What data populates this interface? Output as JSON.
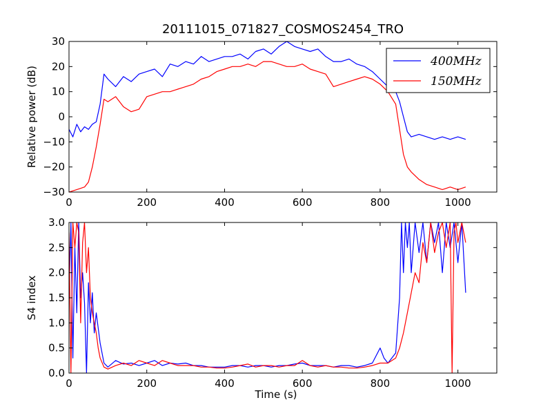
{
  "title": "20111015_071827_COSMOS2454_TRO",
  "chart_data": [
    {
      "type": "line",
      "xlabel": "",
      "ylabel": "Relative power (dB)",
      "xlim": [
        0,
        1100
      ],
      "ylim": [
        -30,
        30
      ],
      "xticks": [
        "0",
        "200",
        "400",
        "600",
        "800",
        "1000"
      ],
      "yticks": [
        "−30",
        "−20",
        "−10",
        "0",
        "10",
        "20",
        "30"
      ],
      "legend": "top-right",
      "series": [
        {
          "name": "400MHz",
          "color": "#0000ff",
          "x": [
            0,
            10,
            20,
            30,
            40,
            50,
            60,
            70,
            80,
            90,
            100,
            120,
            140,
            160,
            180,
            200,
            220,
            240,
            260,
            280,
            300,
            320,
            340,
            360,
            380,
            400,
            420,
            440,
            460,
            480,
            500,
            520,
            540,
            560,
            580,
            600,
            620,
            640,
            660,
            680,
            700,
            720,
            740,
            760,
            780,
            800,
            820,
            840,
            850,
            860,
            870,
            880,
            900,
            920,
            940,
            960,
            980,
            1000,
            1020
          ],
          "y": [
            -5,
            -8,
            -3,
            -6,
            -4,
            -5,
            -3,
            -2,
            5,
            17,
            15,
            12,
            16,
            14,
            17,
            18,
            19,
            16,
            21,
            20,
            22,
            21,
            24,
            22,
            23,
            24,
            24,
            25,
            23,
            26,
            27,
            25,
            28,
            30,
            28,
            27,
            26,
            27,
            24,
            22,
            22,
            23,
            21,
            20,
            18,
            15,
            12,
            10,
            6,
            0,
            -6,
            -8,
            -7,
            -8,
            -9,
            -8,
            -9,
            -8,
            -9
          ]
        },
        {
          "name": "150MHz",
          "color": "#ff0000",
          "x": [
            0,
            20,
            40,
            50,
            60,
            70,
            80,
            90,
            100,
            120,
            140,
            160,
            180,
            200,
            220,
            240,
            260,
            280,
            300,
            320,
            340,
            360,
            380,
            400,
            420,
            440,
            460,
            480,
            500,
            520,
            540,
            560,
            580,
            600,
            620,
            640,
            660,
            680,
            700,
            720,
            740,
            760,
            780,
            800,
            820,
            840,
            850,
            860,
            870,
            880,
            900,
            920,
            940,
            960,
            980,
            1000,
            1020
          ],
          "y": [
            -30,
            -29,
            -28,
            -26,
            -20,
            -12,
            -3,
            7,
            6,
            8,
            4,
            2,
            3,
            8,
            9,
            10,
            10,
            11,
            12,
            13,
            15,
            16,
            18,
            19,
            20,
            20,
            21,
            20,
            22,
            22,
            21,
            20,
            20,
            21,
            19,
            18,
            17,
            12,
            13,
            14,
            15,
            16,
            15,
            13,
            10,
            5,
            -5,
            -15,
            -20,
            -22,
            -25,
            -27,
            -28,
            -29,
            -28,
            -29,
            -28
          ]
        }
      ]
    },
    {
      "type": "line",
      "xlabel": "Time (s)",
      "ylabel": "S4 index",
      "xlim": [
        0,
        1100
      ],
      "ylim": [
        0,
        3
      ],
      "xticks": [
        "0",
        "200",
        "400",
        "600",
        "800",
        "1000"
      ],
      "yticks": [
        "0.0",
        "0.5",
        "1.0",
        "1.5",
        "2.0",
        "2.5",
        "3.0"
      ],
      "series": [
        {
          "name": "400MHz",
          "color": "#0000ff",
          "x": [
            0,
            5,
            10,
            15,
            20,
            25,
            30,
            35,
            40,
            45,
            50,
            55,
            60,
            65,
            70,
            80,
            90,
            100,
            120,
            140,
            160,
            180,
            200,
            220,
            240,
            260,
            280,
            300,
            320,
            340,
            360,
            380,
            400,
            420,
            440,
            460,
            480,
            500,
            520,
            540,
            560,
            580,
            600,
            620,
            640,
            660,
            680,
            700,
            720,
            740,
            760,
            780,
            800,
            810,
            820,
            830,
            840,
            850,
            855,
            860,
            865,
            870,
            875,
            880,
            890,
            900,
            910,
            920,
            930,
            940,
            950,
            960,
            970,
            980,
            990,
            1000,
            1010,
            1020
          ],
          "y": [
            1.5,
            3.0,
            0.3,
            2.5,
            1.2,
            3.0,
            1.5,
            2.0,
            1.4,
            0.0,
            1.8,
            1.0,
            1.6,
            0.8,
            1.2,
            0.6,
            0.2,
            0.12,
            0.25,
            0.18,
            0.2,
            0.15,
            0.2,
            0.25,
            0.15,
            0.2,
            0.18,
            0.2,
            0.15,
            0.15,
            0.12,
            0.12,
            0.12,
            0.15,
            0.15,
            0.12,
            0.15,
            0.15,
            0.12,
            0.15,
            0.15,
            0.18,
            0.2,
            0.15,
            0.15,
            0.15,
            0.12,
            0.15,
            0.15,
            0.12,
            0.15,
            0.2,
            0.5,
            0.3,
            0.2,
            0.3,
            0.4,
            1.5,
            3.0,
            2.0,
            3.0,
            2.5,
            3.0,
            2.0,
            3.0,
            2.4,
            3.0,
            2.2,
            3.0,
            2.6,
            3.0,
            2.0,
            3.0,
            2.5,
            3.0,
            2.2,
            3.0,
            1.6
          ]
        },
        {
          "name": "150MHz",
          "color": "#ff0000",
          "x": [
            0,
            5,
            10,
            15,
            20,
            25,
            30,
            35,
            40,
            45,
            50,
            55,
            60,
            65,
            70,
            75,
            80,
            90,
            100,
            120,
            140,
            160,
            180,
            200,
            220,
            240,
            260,
            280,
            300,
            320,
            340,
            360,
            380,
            400,
            420,
            440,
            460,
            480,
            500,
            520,
            540,
            560,
            580,
            600,
            620,
            640,
            660,
            680,
            700,
            720,
            740,
            760,
            780,
            800,
            820,
            840,
            850,
            860,
            870,
            880,
            890,
            900,
            910,
            920,
            930,
            940,
            950,
            960,
            970,
            980,
            985,
            990,
            995,
            1000,
            1010,
            1020
          ],
          "y": [
            2.8,
            0.0,
            3.0,
            2.5,
            3.0,
            2.8,
            1.0,
            2.6,
            3.0,
            2.0,
            2.5,
            1.5,
            1.2,
            1.0,
            0.8,
            0.5,
            0.3,
            0.12,
            0.08,
            0.15,
            0.2,
            0.15,
            0.25,
            0.2,
            0.15,
            0.25,
            0.2,
            0.15,
            0.15,
            0.15,
            0.12,
            0.12,
            0.1,
            0.1,
            0.12,
            0.15,
            0.18,
            0.12,
            0.15,
            0.15,
            0.12,
            0.15,
            0.15,
            0.25,
            0.15,
            0.12,
            0.15,
            0.12,
            0.12,
            0.1,
            0.1,
            0.12,
            0.15,
            0.2,
            0.2,
            0.3,
            0.5,
            0.8,
            1.2,
            1.6,
            2.0,
            1.8,
            2.6,
            2.2,
            3.0,
            2.4,
            2.8,
            3.0,
            2.5,
            3.0,
            0.0,
            2.8,
            3.0,
            2.6,
            3.0,
            2.6
          ]
        }
      ]
    }
  ]
}
